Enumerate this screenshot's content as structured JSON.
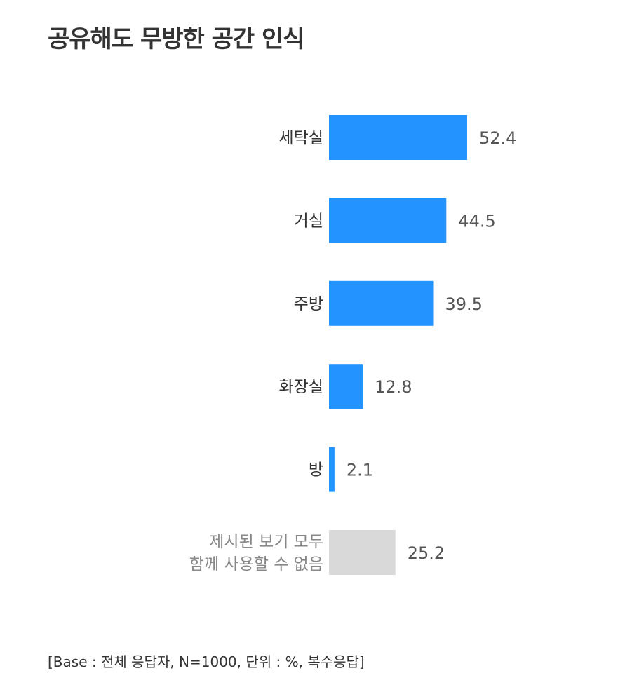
{
  "chart_data": {
    "type": "bar",
    "orientation": "horizontal",
    "title": "공유해도 무방한 공간 인식",
    "categories": [
      "세탁실",
      "거실",
      "주방",
      "화장실",
      "방",
      "제시된 보기 모두\n함께 사용할 수 없음"
    ],
    "values": [
      52.4,
      44.5,
      39.5,
      12.8,
      2.1,
      25.2
    ],
    "value_labels": [
      "52.4",
      "44.5",
      "39.5",
      "12.8",
      "2.1",
      "25.2"
    ],
    "colors": [
      "#2394ff",
      "#2394ff",
      "#2394ff",
      "#2394ff",
      "#2394ff",
      "#d9d9d9"
    ],
    "xlim": [
      0,
      52.4
    ],
    "grid": false,
    "legend": "none"
  },
  "footnote": "[Base :  전체 응답자, N=1000, 단위 : %, 복수응답]"
}
